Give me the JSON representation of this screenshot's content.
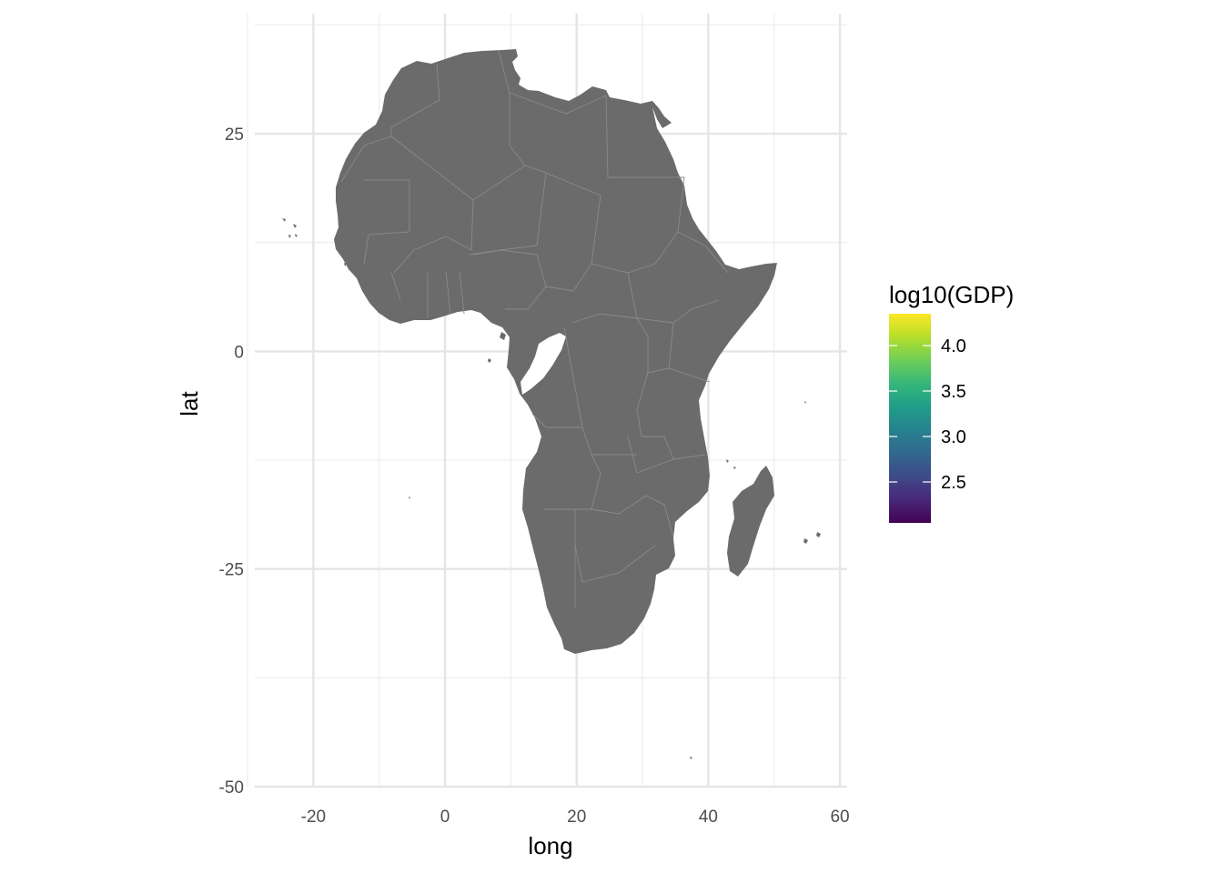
{
  "chart_data": {
    "type": "choropleth map",
    "xlabel": "long",
    "ylabel": "lat",
    "x_ticks": [
      -20,
      0,
      20,
      40,
      60
    ],
    "x_tick_labels": [
      "-20",
      "0",
      "20",
      "40",
      "60"
    ],
    "y_ticks": [
      -50,
      -25,
      0,
      25
    ],
    "y_tick_labels": [
      "-50",
      "-25",
      "0",
      "25"
    ],
    "xlim": [
      -28.9,
      61.1
    ],
    "ylim": [
      -50.1,
      38.8
    ],
    "grid": true,
    "fill_color": "#6b6b6b",
    "border_color": "#8a8a8a",
    "regions": "Africa",
    "legend": {
      "title": "log10(GDP)",
      "placement": "right",
      "range": [
        2.05,
        4.35
      ],
      "breaks": [
        2.5,
        3.0,
        3.5,
        4.0
      ],
      "break_labels": [
        "2.5",
        "3.0",
        "3.5",
        "4.0"
      ],
      "palette": [
        "#440154",
        "#482878",
        "#3e4a89",
        "#31688e",
        "#26828e",
        "#1f9e89",
        "#35b779",
        "#6ece58",
        "#b5de2b",
        "#fde725"
      ]
    }
  }
}
